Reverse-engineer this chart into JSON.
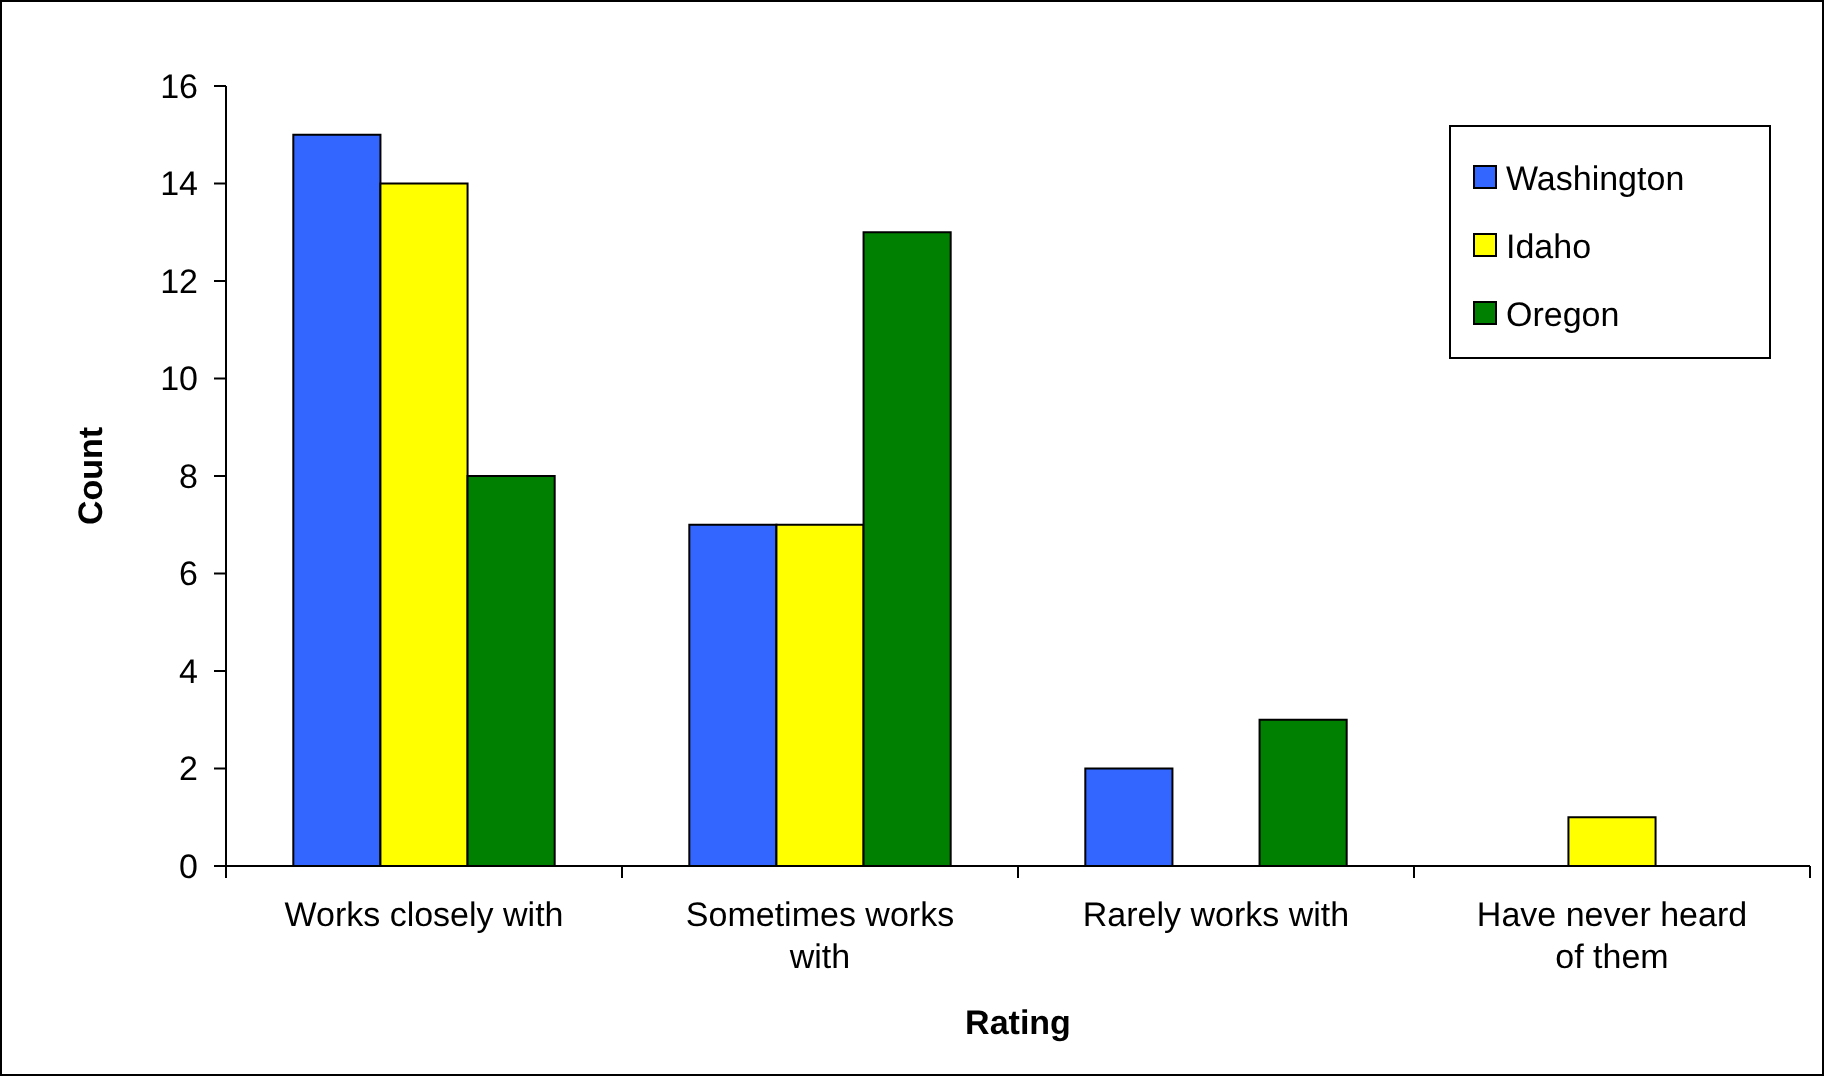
{
  "chart_data": {
    "type": "bar",
    "xlabel": "Rating",
    "ylabel": "Count",
    "categories": [
      "Works closely with",
      "Sometimes works with",
      "Rarely works with",
      "Have never heard of them"
    ],
    "series": [
      {
        "name": "Washington",
        "color": "#3366ff",
        "values": [
          15,
          7,
          2,
          0
        ]
      },
      {
        "name": "Idaho",
        "color": "#ffff00",
        "values": [
          14,
          7,
          0,
          1
        ]
      },
      {
        "name": "Oregon",
        "color": "#008000",
        "values": [
          8,
          13,
          3,
          0
        ]
      }
    ],
    "ylim": [
      0,
      16
    ],
    "yticks": [
      0,
      2,
      4,
      6,
      8,
      10,
      12,
      14,
      16
    ],
    "grid": false,
    "legend": "top right"
  }
}
